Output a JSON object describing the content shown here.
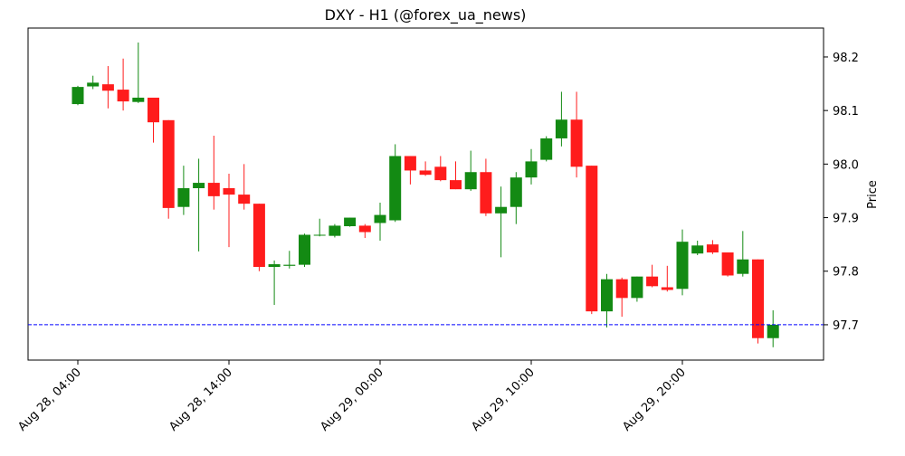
{
  "chart_data": {
    "type": "candlestick",
    "title": "DXY - H1 (@forex_ua_news)",
    "y_label": "Price",
    "categories": [
      "Aug 28, 04:00",
      null,
      null,
      null,
      null,
      null,
      null,
      null,
      null,
      null,
      "Aug 28, 14:00",
      null,
      null,
      null,
      null,
      null,
      null,
      null,
      null,
      null,
      "Aug 29, 00:00",
      null,
      null,
      null,
      null,
      null,
      null,
      null,
      null,
      null,
      "Aug 29, 10:00",
      null,
      null,
      null,
      null,
      null,
      null,
      null,
      null,
      null,
      "Aug 29, 20:00",
      null,
      null,
      null,
      null,
      null,
      null
    ],
    "open": [
      98.112,
      98.145,
      98.149,
      98.139,
      98.116,
      98.124,
      98.082,
      97.92,
      97.955,
      97.965,
      97.955,
      97.943,
      97.926,
      97.808,
      97.81,
      97.812,
      97.867,
      97.866,
      97.884,
      97.885,
      97.89,
      97.895,
      98.015,
      97.988,
      97.995,
      97.97,
      97.953,
      97.985,
      97.908,
      97.92,
      97.975,
      98.008,
      98.048,
      98.083,
      97.997,
      97.725,
      97.785,
      97.75,
      97.79,
      97.77,
      97.767,
      97.833,
      97.85,
      97.835,
      97.795,
      97.822,
      97.675
    ],
    "high": [
      98.146,
      98.165,
      98.183,
      98.197,
      98.227,
      98.124,
      98.082,
      97.997,
      98.01,
      98.053,
      97.982,
      98.0,
      97.926,
      97.82,
      97.838,
      97.87,
      97.898,
      97.888,
      97.9,
      97.888,
      97.928,
      98.037,
      98.015,
      98.005,
      98.015,
      98.005,
      98.025,
      98.01,
      97.958,
      97.985,
      98.028,
      98.052,
      98.135,
      98.135,
      97.997,
      97.795,
      97.788,
      97.79,
      97.812,
      97.81,
      97.878,
      97.857,
      97.858,
      97.835,
      97.875,
      97.822,
      97.727
    ],
    "low": [
      98.11,
      98.14,
      98.104,
      98.1,
      98.114,
      98.04,
      97.898,
      97.905,
      97.837,
      97.915,
      97.845,
      97.915,
      97.8,
      97.737,
      97.805,
      97.808,
      97.865,
      97.863,
      97.883,
      97.862,
      97.857,
      97.892,
      97.962,
      97.978,
      97.968,
      97.953,
      97.95,
      97.903,
      97.826,
      97.888,
      97.962,
      98.005,
      98.033,
      97.975,
      97.72,
      97.695,
      97.715,
      97.743,
      97.77,
      97.762,
      97.755,
      97.83,
      97.832,
      97.79,
      97.79,
      97.665,
      97.658
    ],
    "close": [
      98.144,
      98.152,
      98.137,
      98.117,
      98.124,
      98.078,
      97.918,
      97.955,
      97.965,
      97.94,
      97.943,
      97.926,
      97.808,
      97.813,
      97.812,
      97.868,
      97.868,
      97.885,
      97.9,
      97.873,
      97.905,
      98.015,
      97.988,
      97.98,
      97.97,
      97.953,
      97.985,
      97.908,
      97.92,
      97.975,
      98.005,
      98.048,
      98.083,
      97.995,
      97.725,
      97.785,
      97.75,
      97.79,
      97.772,
      97.765,
      97.855,
      97.848,
      97.835,
      97.792,
      97.822,
      97.675,
      97.7
    ],
    "up_color": "#138a13",
    "down_color": "#ff1c1c",
    "hline": 97.7,
    "hline_color": "#0000ff",
    "ylim": [
      97.634,
      98.254
    ],
    "yticks": [
      97.7,
      97.8,
      97.9,
      {
        "value": 98,
        "label": "98.0"
      },
      98.1,
      98.2
    ]
  }
}
